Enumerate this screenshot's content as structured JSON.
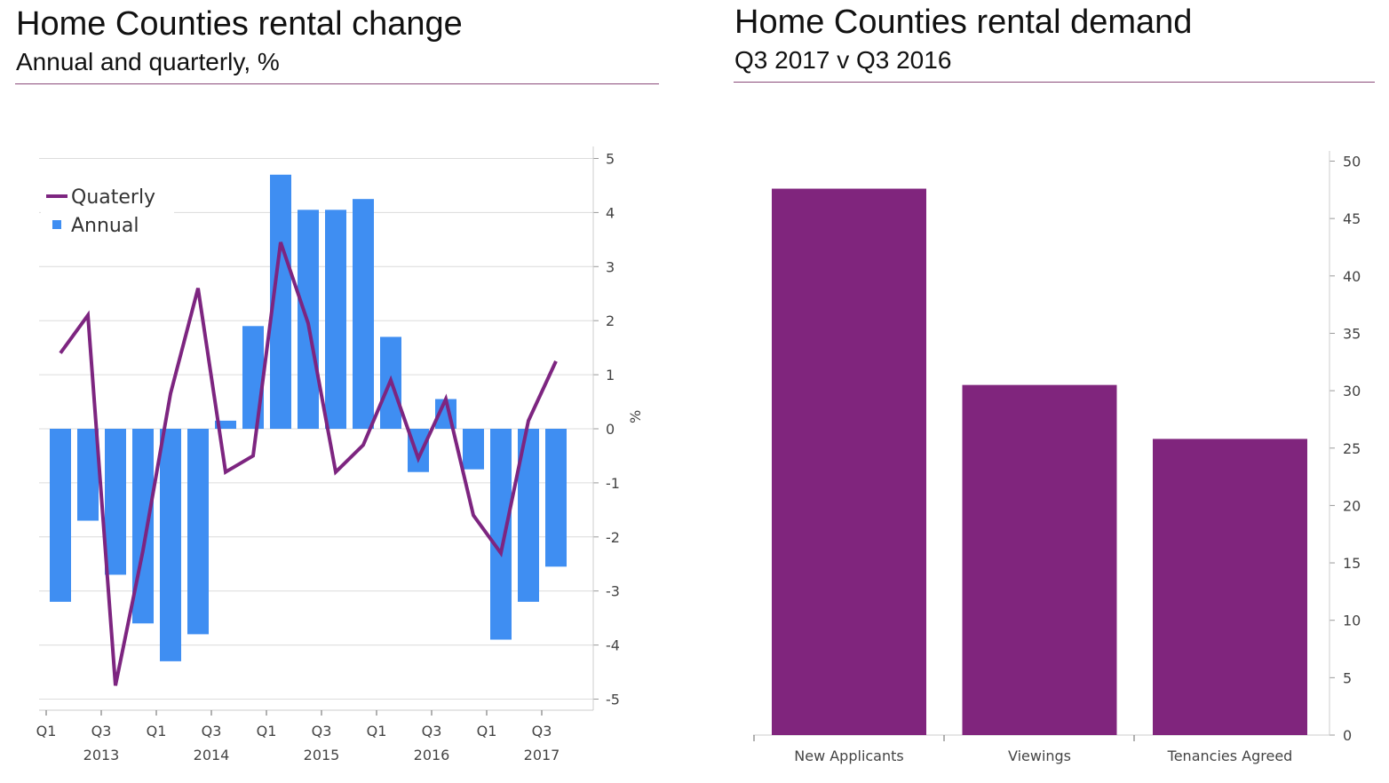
{
  "left": {
    "title": "Home Counties rental change",
    "subtitle": "Annual and quarterly, %"
  },
  "right": {
    "title": "Home Counties rental demand",
    "subtitle": "Q3 2017 v Q3 2016"
  },
  "colors": {
    "annual": "#3f8ef2",
    "quarterly": "#7d2580",
    "demand": "#80257d"
  },
  "chart_data": [
    {
      "type": "bar+line",
      "title": "Home Counties rental change",
      "subtitle": "Annual and quarterly, %",
      "ylabel": "%",
      "ylim": [
        -5,
        5
      ],
      "yticks": [
        "5",
        "4",
        "3",
        "2",
        "1",
        "0",
        "-1",
        "-2",
        "-3",
        "-4",
        "-5"
      ],
      "xticks": [
        "Q1",
        "Q3",
        "Q1",
        "Q3",
        "Q1",
        "Q3",
        "Q1",
        "Q3",
        "Q1",
        "Q3"
      ],
      "years": [
        "2013",
        "2014",
        "2015",
        "2016",
        "2017"
      ],
      "categories": [
        "Q1 2013",
        "Q2 2013",
        "Q3 2013",
        "Q4 2013",
        "Q1 2014",
        "Q2 2014",
        "Q3 2014",
        "Q4 2014",
        "Q1 2015",
        "Q2 2015",
        "Q3 2015",
        "Q4 2015",
        "Q1 2016",
        "Q2 2016",
        "Q3 2016",
        "Q4 2016",
        "Q1 2017",
        "Q2 2017",
        "Q3 2017"
      ],
      "legend": [
        "Quaterly",
        "Annual"
      ],
      "legend_position": "top-left",
      "series": [
        {
          "name": "Annual",
          "type": "bar",
          "values": [
            -3.2,
            -1.7,
            -2.7,
            -3.6,
            -4.3,
            -3.8,
            0.15,
            1.9,
            4.7,
            4.05,
            4.05,
            4.25,
            1.7,
            -0.8,
            0.55,
            -0.75,
            -3.9,
            -3.2,
            -2.55
          ]
        },
        {
          "name": "Quaterly",
          "type": "line",
          "values": [
            1.4,
            2.1,
            -4.75,
            -2.25,
            0.65,
            2.6,
            -0.8,
            -0.5,
            3.45,
            1.95,
            -0.8,
            -0.3,
            0.9,
            -0.55,
            0.55,
            -1.6,
            -2.3,
            0.15,
            1.25
          ]
        }
      ]
    },
    {
      "type": "bar",
      "title": "Home Counties rental demand",
      "subtitle": "Q3 2017 v Q3 2016",
      "categories": [
        "New Applicants",
        "Viewings",
        "Tenancies Agreed"
      ],
      "values": [
        47.6,
        30.5,
        25.8
      ],
      "ylim": [
        0,
        50
      ],
      "yticks": [
        "50",
        "45",
        "40",
        "35",
        "30",
        "25",
        "20",
        "15",
        "10",
        "5",
        "0"
      ]
    }
  ]
}
